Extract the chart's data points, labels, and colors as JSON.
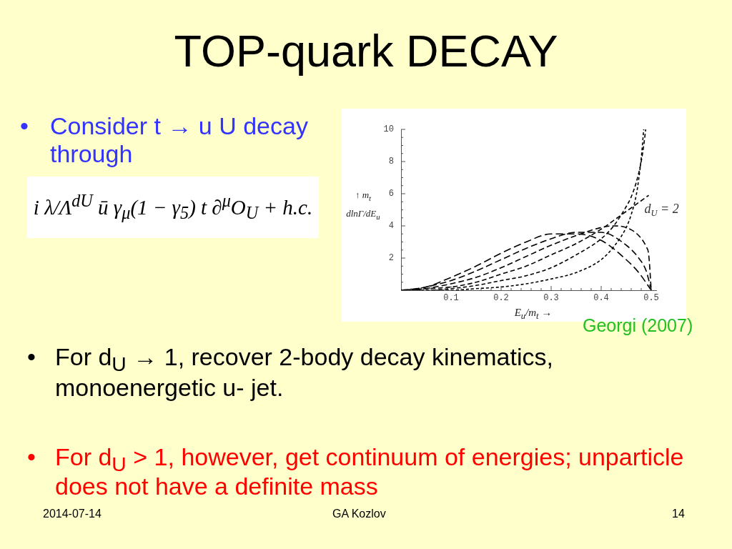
{
  "chart_data": {
    "type": "line",
    "title": "TOP-quark DECAY",
    "xlabel": "E$_{u}$/m$_{t}$ →",
    "ylabel": "↑ m$_{t}$ dlnΓ/dE$_{u}$",
    "annotations": [
      "• Consider t → u U decay through",
      "i λ/Λ$^{dU}$ ū γ$_{μ}$(1 − γ$_{5}$) t ∂$^{μ}$O$_{U}$ + h.c.",
      "Georgi (2007)",
      "• For d$_{U}$ → 1, recover 2-body decay kinematics, monoenergetic u- jet.",
      "• For d$_{U}$ > 1, however, get continuum of energies; unparticle does not have a definite mass",
      "2014-07-14",
      "GA Kozlov",
      "14"
    ],
    "xlim": [
      0,
      0.51
    ],
    "ylim": [
      0,
      10
    ],
    "xticks": [
      {
        "value": 0.02,
        "label": null
      },
      {
        "value": 0.04,
        "label": null
      },
      {
        "value": 0.06,
        "label": null
      },
      {
        "value": 0.08,
        "label": null
      },
      0.1,
      {
        "value": 0.12,
        "label": null
      },
      {
        "value": 0.14,
        "label": null
      },
      {
        "value": 0.16,
        "label": null
      },
      {
        "value": 0.18,
        "label": null
      },
      0.2,
      {
        "value": 0.22,
        "label": null
      },
      {
        "value": 0.24,
        "label": null
      },
      {
        "value": 0.26,
        "label": null
      },
      {
        "value": 0.28,
        "label": null
      },
      0.3,
      {
        "value": 0.32,
        "label": null
      },
      {
        "value": 0.34,
        "label": null
      },
      {
        "value": 0.36,
        "label": null
      },
      {
        "value": 0.38,
        "label": null
      },
      0.4,
      {
        "value": 0.42,
        "label": null
      },
      {
        "value": 0.44,
        "label": null
      },
      {
        "value": 0.46,
        "label": null
      },
      {
        "value": 0.48,
        "label": null
      },
      0.5
    ],
    "yticks": [
      {
        "value": 0.5,
        "label": null
      },
      {
        "value": 1,
        "label": null
      },
      {
        "value": 1.5,
        "label": null
      },
      2,
      {
        "value": 2.5,
        "label": null
      },
      {
        "value": 3,
        "label": null
      },
      {
        "value": 3.5,
        "label": null
      },
      4,
      {
        "value": 4.5,
        "label": null
      },
      {
        "value": 5,
        "label": null
      },
      {
        "value": 5.5,
        "label": null
      },
      6,
      {
        "value": 6.5,
        "label": null
      },
      {
        "value": 7,
        "label": null
      },
      {
        "value": 7.5,
        "label": null
      },
      8,
      {
        "value": 8.5,
        "label": null
      },
      {
        "value": 9,
        "label": null
      },
      {
        "value": 9.5,
        "label": null
      },
      10
    ],
    "marker": "none",
    "line_style": "dashed",
    "series": [
      {
        "color": "#000000",
        "x": [
          0,
          0.05,
          0.1,
          0.15,
          0.2,
          0.25,
          0.3,
          0.35,
          0.4,
          0.425,
          0.45,
          0.46,
          0.47,
          0.475,
          0.48,
          0.485
        ],
        "values": [
          0,
          0,
          0,
          0.1,
          0.2,
          0.4,
          0.7,
          1.1,
          1.9,
          2.7,
          3.9,
          4.7,
          5.9,
          6.9,
          8.2,
          10
        ]
      },
      {
        "color": "#000000",
        "x": [
          0,
          0.05,
          0.1,
          0.15,
          0.2,
          0.25,
          0.3,
          0.35,
          0.4,
          0.425,
          0.45,
          0.46,
          0.47,
          0.48,
          0.485,
          0.489
        ],
        "values": [
          0,
          0,
          0.1,
          0.3,
          0.6,
          0.9,
          1.4,
          2.2,
          3.2,
          4,
          5.2,
          5.8,
          6.7,
          8,
          9,
          10
        ]
      },
      {
        "name": "d$_{U}$ = 2",
        "color": "#000000",
        "x": [
          0,
          0.05,
          0.1,
          0.15,
          0.2,
          0.25,
          0.3,
          0.35,
          0.4,
          0.45,
          0.495
        ],
        "values": [
          0,
          0.1,
          0.2,
          0.5,
          1,
          1.5,
          2.2,
          2.9,
          3.8,
          4.9,
          5.9
        ]
      },
      {
        "color": "#000000",
        "x": [
          0.03,
          0.05,
          0.1,
          0.15,
          0.2,
          0.25,
          0.3,
          0.35,
          0.4,
          0.425,
          0.45,
          0.475,
          0.49,
          0.495,
          0.5
        ],
        "values": [
          0,
          0.1,
          0.4,
          0.8,
          1.4,
          2.1,
          2.8,
          3.4,
          3.9,
          4,
          3.9,
          3.4,
          2.7,
          2.2,
          0
        ]
      },
      {
        "color": "#000000",
        "x": [
          0.02,
          0.05,
          0.1,
          0.15,
          0.2,
          0.25,
          0.3,
          0.35,
          0.375,
          0.4,
          0.45,
          0.475,
          0.49,
          0.5
        ],
        "values": [
          0,
          0.2,
          0.6,
          1.2,
          1.9,
          2.6,
          3.2,
          3.6,
          3.6,
          3.6,
          2.8,
          2,
          1.2,
          0
        ]
      },
      {
        "color": "#000000",
        "x": [
          0,
          0.05,
          0.1,
          0.15,
          0.2,
          0.25,
          0.3,
          0.35,
          0.4,
          0.45,
          0.475,
          0.5
        ],
        "values": [
          0,
          0.2,
          0.8,
          1.5,
          2.3,
          3,
          3.5,
          3.5,
          3.1,
          1.9,
          1.1,
          0
        ]
      }
    ]
  }
}
